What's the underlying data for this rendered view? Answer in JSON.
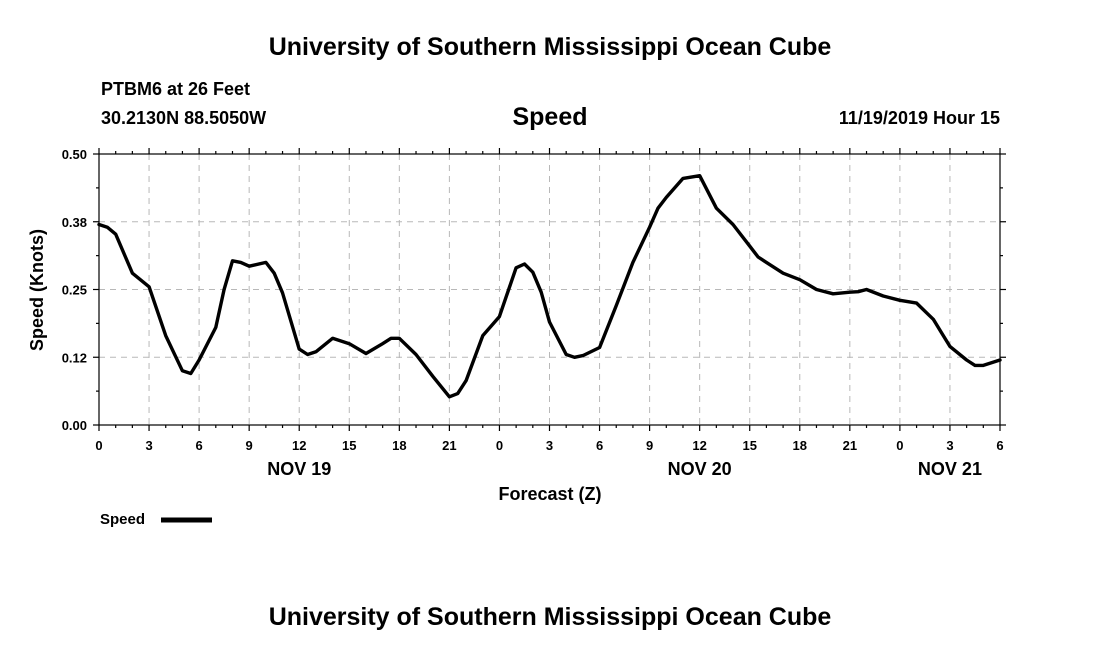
{
  "header": {
    "top_title": "University of Southern Mississippi Ocean Cube",
    "station": "PTBM6 at 26 Feet",
    "location": "30.2130N 88.5050W",
    "run": "11/19/2019 Hour 15",
    "bottom_title": "University of Southern Mississippi Ocean Cube"
  },
  "legend": {
    "label": "Speed"
  },
  "chart_data": {
    "type": "line",
    "title": "Speed",
    "xlabel": "Forecast (Z)",
    "ylabel": "Speed (Knots)",
    "ylim": [
      0,
      0.5
    ],
    "xlim": [
      0,
      54
    ],
    "grid": true,
    "legend": "bottom-left",
    "yticks": [
      {
        "value": 0.0,
        "label": "0.00"
      },
      {
        "value": 0.125,
        "label": "0.12"
      },
      {
        "value": 0.25,
        "label": "0.25"
      },
      {
        "value": 0.375,
        "label": "0.38"
      },
      {
        "value": 0.5,
        "label": "0.50"
      }
    ],
    "xticks": [
      {
        "value": 0,
        "label": "0"
      },
      {
        "value": 3,
        "label": "3"
      },
      {
        "value": 6,
        "label": "6"
      },
      {
        "value": 9,
        "label": "9"
      },
      {
        "value": 12,
        "label": "12"
      },
      {
        "value": 15,
        "label": "15"
      },
      {
        "value": 18,
        "label": "18"
      },
      {
        "value": 21,
        "label": "21"
      },
      {
        "value": 24,
        "label": "0"
      },
      {
        "value": 27,
        "label": "3"
      },
      {
        "value": 30,
        "label": "6"
      },
      {
        "value": 33,
        "label": "9"
      },
      {
        "value": 36,
        "label": "12"
      },
      {
        "value": 39,
        "label": "15"
      },
      {
        "value": 42,
        "label": "18"
      },
      {
        "value": 45,
        "label": "21"
      },
      {
        "value": 48,
        "label": "0"
      },
      {
        "value": 51,
        "label": "3"
      },
      {
        "value": 54,
        "label": "6"
      }
    ],
    "day_labels": [
      {
        "value": 12,
        "label": "NOV 19"
      },
      {
        "value": 36,
        "label": "NOV 20"
      },
      {
        "value": 51,
        "label": "NOV 21"
      }
    ],
    "series": [
      {
        "name": "Speed",
        "x": [
          0,
          0.5,
          1,
          2,
          3,
          3.5,
          4,
          5,
          5.5,
          6,
          7,
          7.5,
          8,
          8.5,
          9,
          10,
          10.5,
          11,
          12,
          12.5,
          13,
          14,
          15,
          16,
          17,
          17.5,
          18,
          19,
          20,
          21,
          21.5,
          22,
          23,
          24,
          25,
          25.5,
          26,
          26.5,
          27,
          28,
          28.5,
          29,
          30,
          31,
          32,
          33,
          33.5,
          34,
          35,
          36,
          37,
          38,
          39,
          39.5,
          40,
          41,
          42,
          43,
          44,
          45,
          45.5,
          46,
          47,
          48,
          49,
          49.5,
          50,
          50.5,
          51,
          52,
          52.5,
          53,
          54
        ],
        "values": [
          0.37,
          0.365,
          0.352,
          0.28,
          0.255,
          0.21,
          0.165,
          0.1,
          0.095,
          0.12,
          0.18,
          0.25,
          0.303,
          0.3,
          0.293,
          0.3,
          0.28,
          0.244,
          0.14,
          0.13,
          0.135,
          0.16,
          0.15,
          0.132,
          0.15,
          0.16,
          0.16,
          0.13,
          0.09,
          0.052,
          0.058,
          0.082,
          0.165,
          0.2,
          0.29,
          0.297,
          0.282,
          0.245,
          0.19,
          0.13,
          0.125,
          0.128,
          0.143,
          0.22,
          0.3,
          0.365,
          0.4,
          0.42,
          0.455,
          0.46,
          0.4,
          0.37,
          0.33,
          0.31,
          0.3,
          0.28,
          0.268,
          0.25,
          0.242,
          0.245,
          0.246,
          0.25,
          0.238,
          0.23,
          0.225,
          0.21,
          0.195,
          0.17,
          0.145,
          0.12,
          0.11,
          0.11,
          0.12
        ]
      }
    ]
  }
}
